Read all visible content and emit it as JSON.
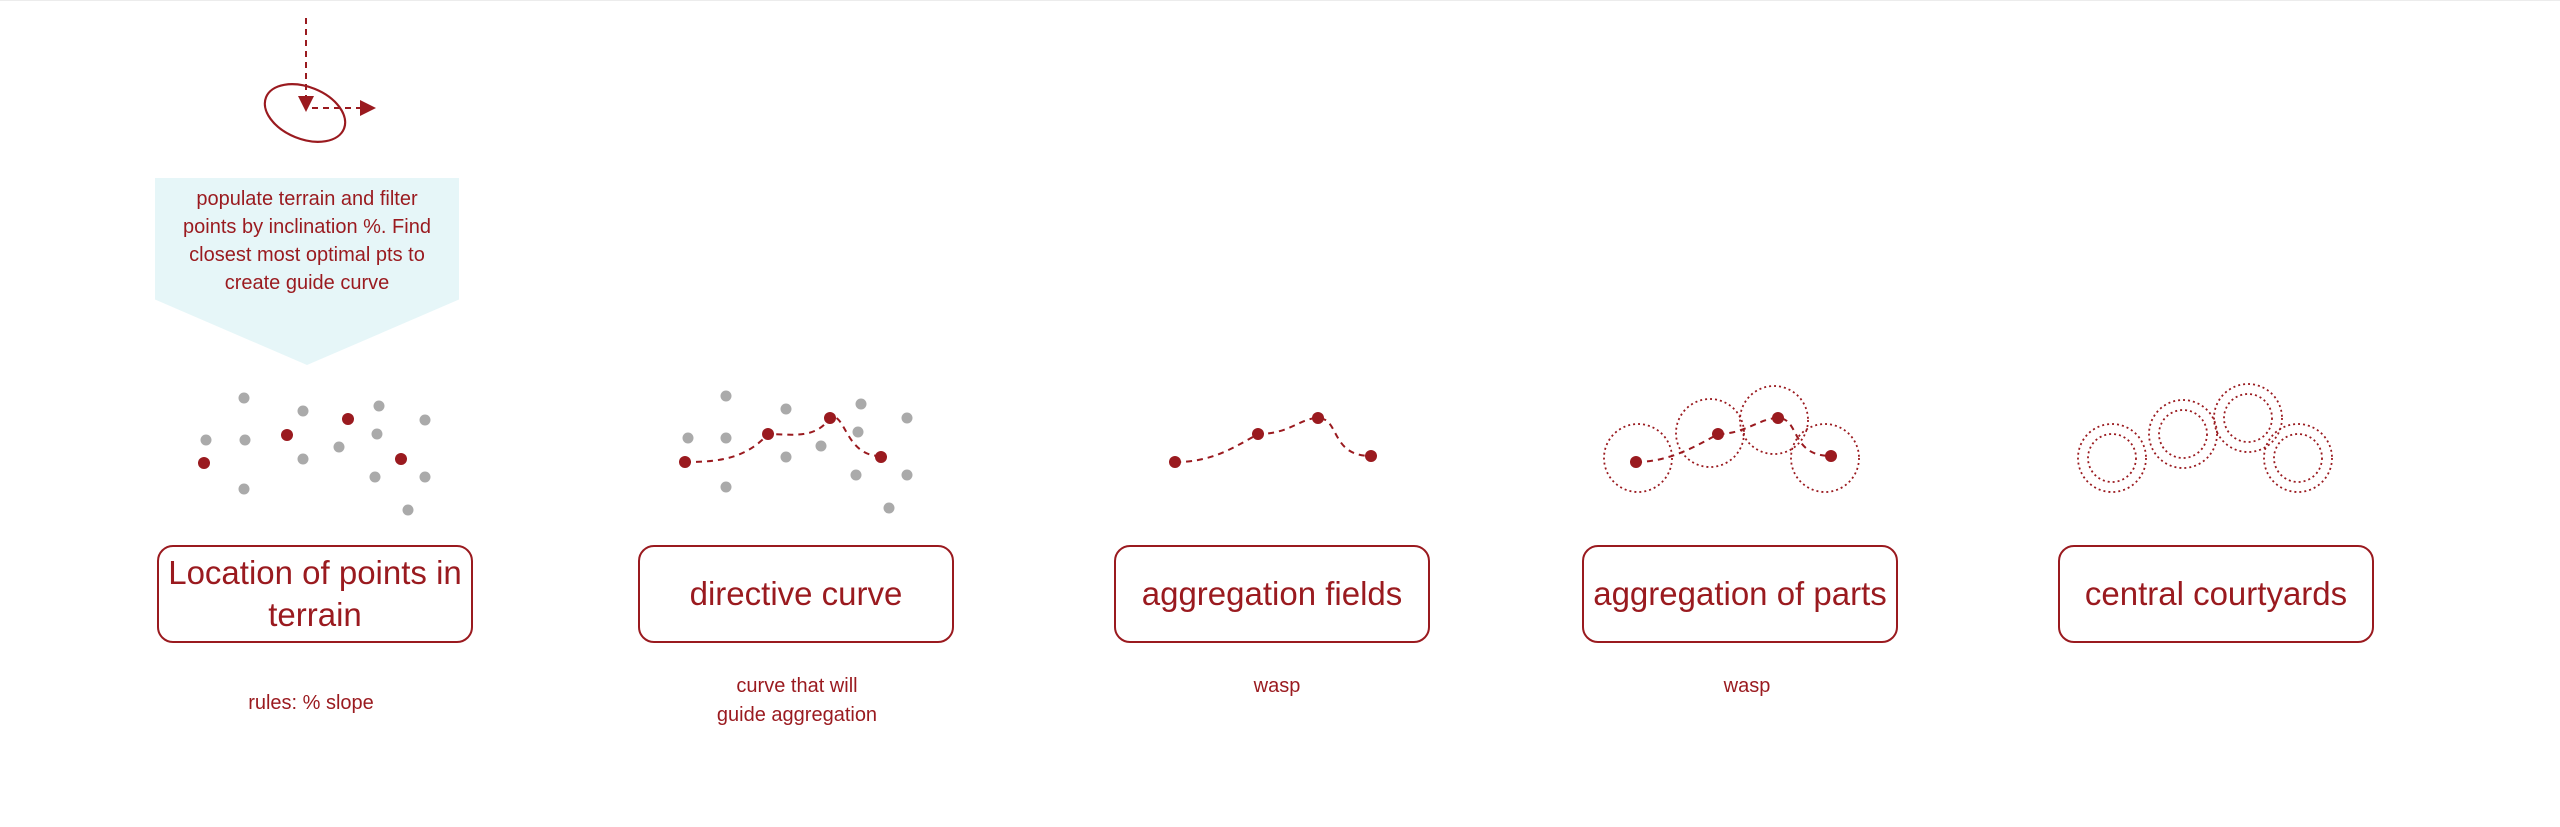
{
  "callout": {
    "text": "populate terrain and filter points by inclination %. Find closest most optimal pts to create guide curve"
  },
  "stages": [
    {
      "title": "Location of points in terrain",
      "caption": "rules: % slope"
    },
    {
      "title": "directive curve",
      "caption_line1": "curve that will",
      "caption_line2": "guide aggregation"
    },
    {
      "title": "aggregation fields",
      "caption": "wasp"
    },
    {
      "title": "aggregation of parts",
      "caption": "wasp"
    },
    {
      "title": "central courtyards",
      "caption": ""
    }
  ],
  "colors": {
    "accent": "#9a1a1f",
    "point_gray": "#aaaaaa",
    "callout_bg": "#e6f6f8"
  }
}
